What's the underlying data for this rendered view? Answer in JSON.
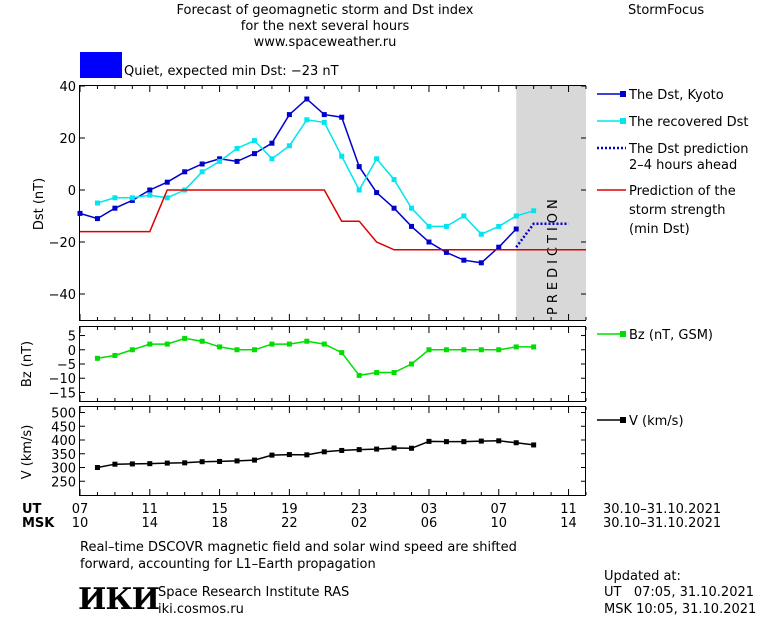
{
  "header": {
    "title_line1": "Forecast of geomagnetic storm and Dst index",
    "title_line2": "for the next several hours",
    "site": "www.spaceweather.ru",
    "brand": "StormFocus"
  },
  "status": {
    "text": "Quiet, expected min Dst: −23 nT",
    "color": "#0000ff"
  },
  "legend": {
    "dst_kyoto": "The Dst, Kyoto",
    "dst_recovered": "The recovered Dst",
    "dst_prediction_1": "The Dst prediction",
    "dst_prediction_2": "2–4 hours ahead",
    "storm_1": "Prediction of the",
    "storm_2": "storm strength",
    "storm_3": "(min Dst)",
    "bz": "Bz (nT, GSM)",
    "v": "V (km/s)"
  },
  "chart_data": [
    {
      "type": "line",
      "ylabel": "Dst (nT)",
      "ylim": [
        -50,
        40
      ],
      "yticks": [
        40,
        20,
        0,
        -20,
        -40
      ],
      "xlim": [
        0,
        29
      ],
      "prediction_label": "PREDICTION",
      "prediction_region": [
        25,
        29
      ],
      "series": [
        {
          "name": "The Dst, Kyoto",
          "color": "#0000cc",
          "x": [
            0,
            1,
            2,
            3,
            4,
            5,
            6,
            7,
            8,
            9,
            10,
            11,
            12,
            13,
            14,
            15,
            16,
            17,
            18,
            19,
            20,
            21,
            22,
            23,
            24,
            25
          ],
          "y": [
            -9,
            -11,
            -7,
            -4,
            0,
            3,
            7,
            10,
            12,
            11,
            14,
            18,
            29,
            35,
            29,
            28,
            9,
            -1,
            -7,
            -14,
            -20,
            -24,
            -27,
            -28,
            -22,
            -15
          ]
        },
        {
          "name": "The recovered Dst",
          "color": "#00e5ee",
          "x": [
            1,
            2,
            3,
            4,
            5,
            6,
            7,
            8,
            9,
            10,
            11,
            12,
            13,
            14,
            15,
            16,
            17,
            18,
            19,
            20,
            21,
            22,
            23,
            24,
            25,
            26
          ],
          "y": [
            -5,
            -3,
            -3,
            -2,
            -3,
            0,
            7,
            11,
            16,
            19,
            12,
            17,
            27,
            26,
            13,
            0,
            12,
            4,
            -7,
            -14,
            -14,
            -10,
            -17,
            -14,
            -10,
            -8
          ]
        },
        {
          "name": "The Dst prediction 2–4 hours ahead",
          "color": "#0000cc",
          "style": "dotted",
          "x": [
            25,
            26,
            27,
            28
          ],
          "y": [
            -22,
            -13,
            -13,
            -13
          ]
        },
        {
          "name": "Prediction of the storm strength (min Dst)",
          "color": "#dd0000",
          "style": "step",
          "x": [
            0,
            4,
            5,
            14,
            15,
            16,
            17,
            18,
            29
          ],
          "y": [
            -16,
            -16,
            0,
            0,
            -12,
            -12,
            -20,
            -23,
            -23
          ]
        }
      ]
    },
    {
      "type": "line",
      "ylabel": "Bz (nT)",
      "ylim": [
        -18,
        8
      ],
      "yticks": [
        5,
        0,
        -5,
        -10,
        -15
      ],
      "ytick_labels": [
        "5",
        "0",
        "−5",
        "−10",
        "−15"
      ],
      "series": [
        {
          "name": "Bz (nT, GSM)",
          "color": "#00dd00",
          "x": [
            1,
            2,
            3,
            4,
            5,
            6,
            7,
            8,
            9,
            10,
            11,
            12,
            13,
            14,
            15,
            16,
            17,
            18,
            19,
            20,
            21,
            22,
            23,
            24,
            25,
            26
          ],
          "y": [
            -3,
            -2,
            0,
            2,
            2,
            4,
            3,
            1,
            0,
            0,
            2,
            2,
            3,
            2,
            -1,
            -9,
            -8,
            -8,
            -5,
            0,
            0,
            0,
            0,
            0,
            1,
            1
          ]
        }
      ]
    },
    {
      "type": "line",
      "ylabel": "V (km/s)",
      "ylim": [
        200,
        520
      ],
      "yticks": [
        500,
        450,
        400,
        350,
        300,
        250
      ],
      "series": [
        {
          "name": "V (km/s)",
          "color": "#000000",
          "x": [
            1,
            2,
            3,
            4,
            5,
            6,
            7,
            8,
            9,
            10,
            11,
            12,
            13,
            14,
            15,
            16,
            17,
            18,
            19,
            20,
            21,
            22,
            23,
            24,
            25,
            26
          ],
          "y": [
            300,
            312,
            313,
            314,
            316,
            317,
            321,
            322,
            324,
            327,
            345,
            347,
            346,
            357,
            362,
            365,
            367,
            371,
            370,
            395,
            394,
            394,
            396,
            397,
            390,
            382
          ]
        }
      ]
    }
  ],
  "time_axis": {
    "ut_label": "UT",
    "msk_label": "MSK",
    "ut_ticks": [
      "07",
      "11",
      "15",
      "19",
      "23",
      "03",
      "07",
      "11"
    ],
    "msk_ticks": [
      "10",
      "14",
      "18",
      "22",
      "02",
      "06",
      "10",
      "14"
    ],
    "date_range_ut": "30.10–31.10.2021",
    "date_range_msk": "30.10–31.10.2021"
  },
  "footer": {
    "note_line1": "Real–time DSCOVR magnetic field and solar wind speed are shifted",
    "note_line2": "forward, accounting for L1–Earth propagation",
    "logo": "ИКИ",
    "institute": "Space Research Institute RAS",
    "institute_site": "iki.cosmos.ru",
    "updated_label": "Updated at:",
    "updated_ut": "UT   07:05, 31.10.2021",
    "updated_msk": "MSK 10:05, 31.10.2021"
  }
}
